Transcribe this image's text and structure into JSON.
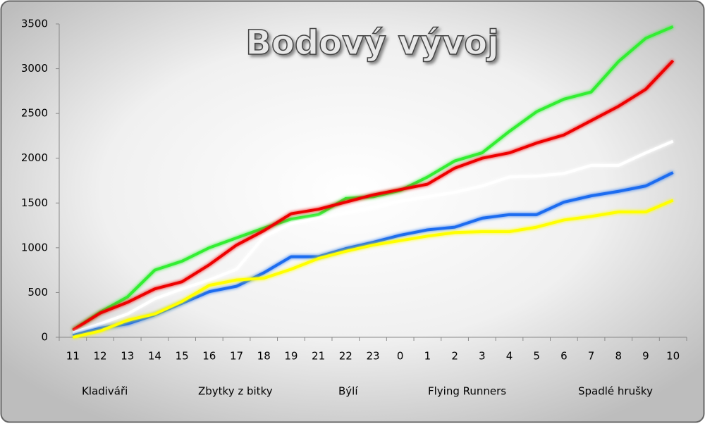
{
  "chart_data": {
    "type": "line",
    "title": "Bodový vývoj",
    "categories": [
      "11",
      "12",
      "13",
      "14",
      "15",
      "16",
      "17",
      "18",
      "19",
      "21",
      "22",
      "23",
      "0",
      "1",
      "2",
      "3",
      "4",
      "5",
      "6",
      "7",
      "8",
      "9",
      "10"
    ],
    "series": [
      {
        "name": "Kladiváři",
        "color": "#33ee33",
        "values": [
          80,
          280,
          450,
          750,
          850,
          1000,
          1110,
          1220,
          1320,
          1370,
          1550,
          1570,
          1640,
          1790,
          1970,
          2060,
          2300,
          2520,
          2660,
          2740,
          3080,
          3340,
          3470
        ]
      },
      {
        "name": "Zbytky z bitky",
        "color": "#ee0000",
        "values": [
          80,
          270,
          390,
          540,
          620,
          810,
          1030,
          1190,
          1380,
          1430,
          1510,
          1590,
          1650,
          1710,
          1890,
          2000,
          2060,
          2170,
          2260,
          2420,
          2580,
          2770,
          3090
        ]
      },
      {
        "name": "Býlí",
        "color": "#ffffff",
        "values": [
          50,
          150,
          260,
          430,
          540,
          640,
          760,
          1120,
          1270,
          1330,
          1390,
          1450,
          1520,
          1570,
          1620,
          1690,
          1790,
          1800,
          1830,
          1920,
          1920,
          2060,
          2190
        ]
      },
      {
        "name": "Flying Runners",
        "color": "#1a6cf0",
        "values": [
          20,
          100,
          150,
          250,
          380,
          510,
          570,
          720,
          900,
          900,
          990,
          1060,
          1140,
          1200,
          1230,
          1330,
          1370,
          1370,
          1510,
          1580,
          1630,
          1690,
          1840
        ]
      },
      {
        "name": "Spadlé hrušky",
        "color": "#ffff00",
        "values": [
          0,
          70,
          190,
          260,
          400,
          580,
          640,
          660,
          760,
          880,
          960,
          1030,
          1080,
          1130,
          1170,
          1180,
          1180,
          1230,
          1310,
          1350,
          1400,
          1400,
          1530
        ]
      }
    ],
    "ylim": [
      0,
      3500
    ],
    "yticks": [
      0,
      500,
      1000,
      1500,
      2000,
      2500,
      3000,
      3500
    ],
    "legend": "bottom"
  }
}
